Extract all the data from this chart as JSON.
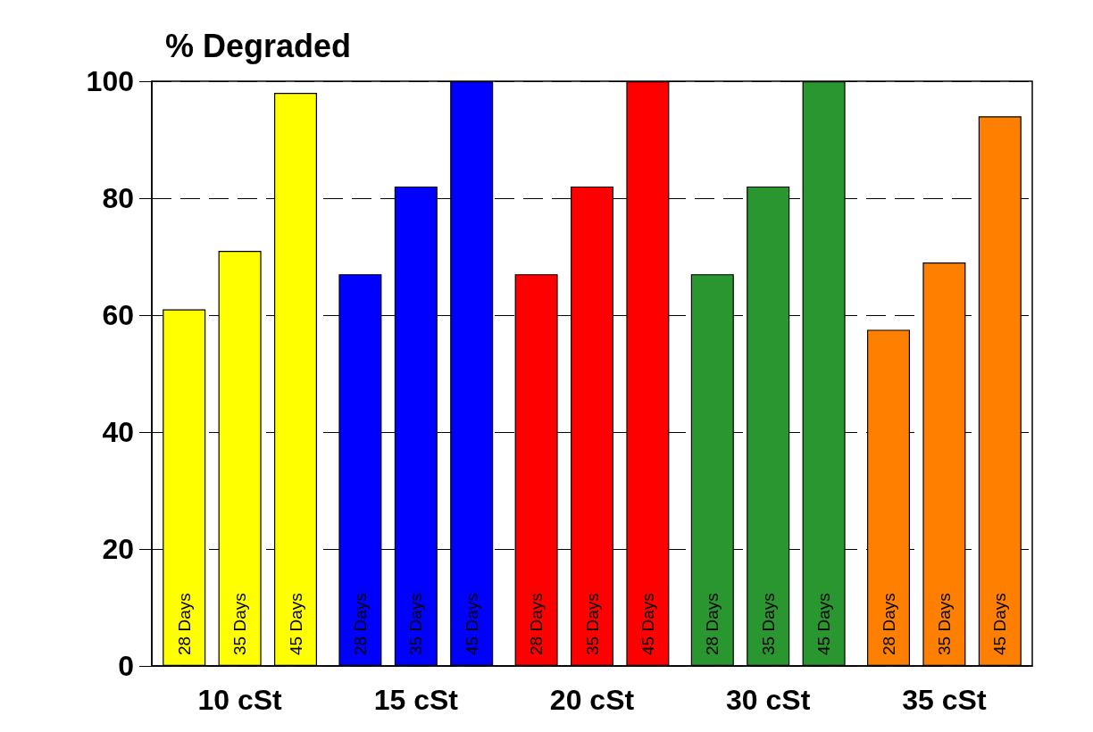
{
  "chart_data": {
    "type": "bar",
    "title": "% Degraded",
    "categories": [
      "10 cSt",
      "15 cSt",
      "20 cSt",
      "30 cSt",
      "35 cSt"
    ],
    "series": [
      {
        "name": "28 Days",
        "colors": [
          "#ffff00",
          "#0000ff",
          "#ff0000",
          "#2a962f",
          "#ff8000"
        ],
        "values": [
          61,
          67,
          67,
          67,
          57.5
        ]
      },
      {
        "name": "35 Days",
        "colors": [
          "#ffff00",
          "#0000ff",
          "#ff0000",
          "#2a962f",
          "#ff8000"
        ],
        "values": [
          71,
          82,
          82,
          82,
          69
        ]
      },
      {
        "name": "45 Days",
        "colors": [
          "#ffff00",
          "#0000ff",
          "#ff0000",
          "#2a962f",
          "#ff8000"
        ],
        "values": [
          98,
          100,
          100,
          100,
          94
        ]
      }
    ],
    "ylim": [
      0,
      100
    ],
    "yticks": [
      0,
      20,
      40,
      60,
      80,
      100
    ],
    "grid": "y",
    "legend": false
  }
}
